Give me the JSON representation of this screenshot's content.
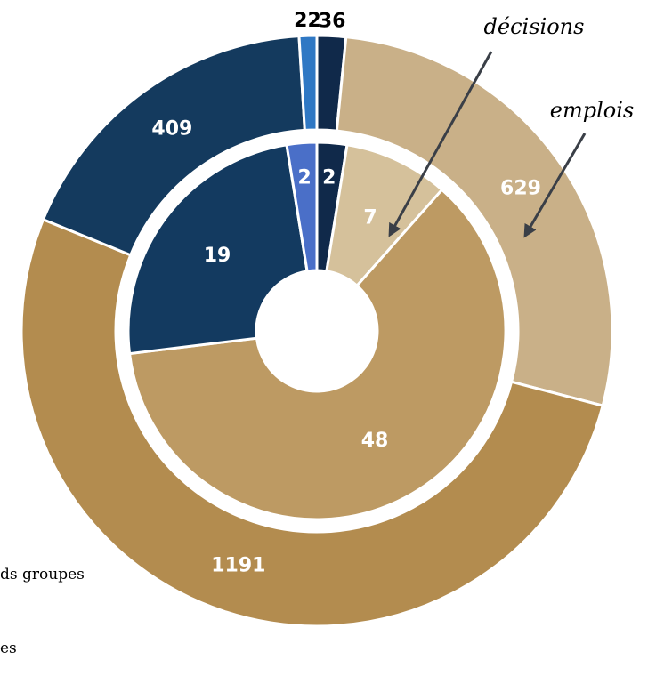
{
  "chart_data": {
    "type": "nested-donut",
    "series": [
      {
        "name": "emplois",
        "ring": "outer",
        "values": [
          36,
          629,
          1191,
          409,
          22
        ],
        "colors": [
          "#10294a",
          "#c9b088",
          "#b38c4f",
          "#143a5e",
          "#2f78c4"
        ]
      },
      {
        "name": "décisions",
        "ring": "inner",
        "values": [
          2,
          7,
          48,
          19,
          2
        ],
        "colors": [
          "#10294a",
          "#d5c19b",
          "#bd9a63",
          "#133a60",
          "#4a6fc8"
        ]
      }
    ],
    "legend_fragments": [
      "ds groupes",
      "es"
    ]
  }
}
